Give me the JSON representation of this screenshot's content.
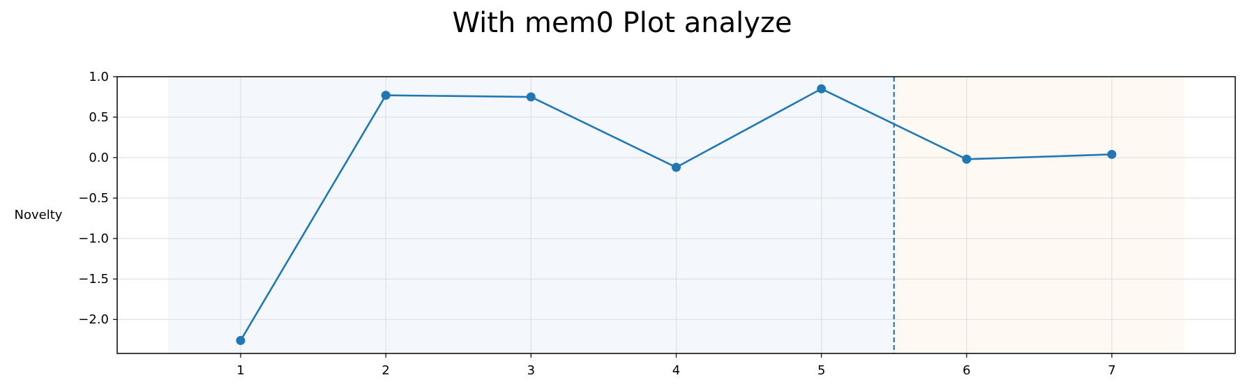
{
  "chart_data": {
    "type": "line",
    "title": "With mem0 Plot analyze",
    "xlabel": "",
    "ylabel": "Novelty",
    "x": [
      1,
      2,
      3,
      4,
      5,
      6,
      7
    ],
    "series": [
      {
        "values": [
          -2.26,
          0.77,
          0.75,
          -0.12,
          0.85,
          -0.02,
          0.04
        ],
        "color": "#1f77b4"
      }
    ],
    "xlim": [
      0.15,
      7.85
    ],
    "ylim": [
      -2.42,
      1.0
    ],
    "x_ticks": [
      1,
      2,
      3,
      4,
      5,
      6,
      7
    ],
    "y_ticks": [
      1.0,
      0.5,
      0.0,
      -0.5,
      -1.0,
      -1.5,
      -2.0
    ],
    "y_tick_labels": [
      "1.0",
      "0.5",
      "0.0",
      "−0.5",
      "−1.0",
      "−1.5",
      "−2.0"
    ],
    "grid": true,
    "shaded_regions": [
      {
        "x_start": 0.5,
        "x_end": 5.5,
        "color": "#f4f8fd"
      },
      {
        "x_start": 5.5,
        "x_end": 7.5,
        "color": "#fef9f3"
      }
    ],
    "vertical_line": {
      "x": 5.5,
      "style": "dashed",
      "color": "#1f77b4"
    }
  }
}
